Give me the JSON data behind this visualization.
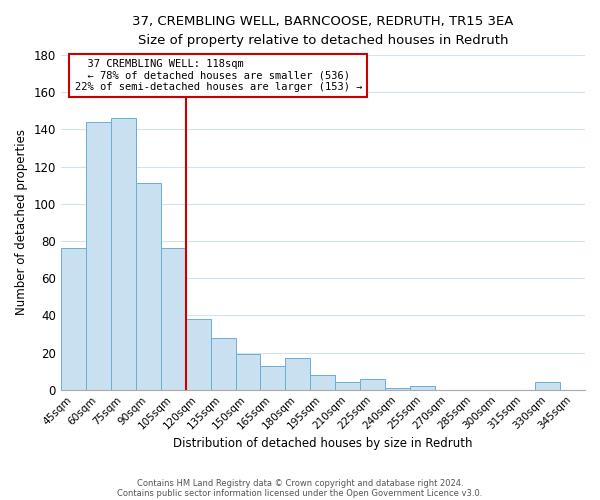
{
  "title_line1": "37, CREMBLING WELL, BARNCOOSE, REDRUTH, TR15 3EA",
  "title_line2": "Size of property relative to detached houses in Redruth",
  "xlabel": "Distribution of detached houses by size in Redruth",
  "ylabel": "Number of detached properties",
  "bar_labels": [
    "45sqm",
    "60sqm",
    "75sqm",
    "90sqm",
    "105sqm",
    "120sqm",
    "135sqm",
    "150sqm",
    "165sqm",
    "180sqm",
    "195sqm",
    "210sqm",
    "225sqm",
    "240sqm",
    "255sqm",
    "270sqm",
    "285sqm",
    "300sqm",
    "315sqm",
    "330sqm",
    "345sqm"
  ],
  "bar_values": [
    76,
    144,
    146,
    111,
    76,
    38,
    28,
    19,
    13,
    17,
    8,
    4,
    6,
    1,
    2,
    0,
    0,
    0,
    0,
    4,
    0
  ],
  "bar_color": "#c9e0f0",
  "bar_edge_color": "#6aaed6",
  "grid_color": "#d0e4f0",
  "vline_color": "#cc0000",
  "annotation_title": "37 CREMBLING WELL: 118sqm",
  "annotation_line1": "← 78% of detached houses are smaller (536)",
  "annotation_line2": "22% of semi-detached houses are larger (153) →",
  "annotation_box_color": "white",
  "annotation_box_edge": "#cc0000",
  "ylim": [
    0,
    180
  ],
  "yticks": [
    0,
    20,
    40,
    60,
    80,
    100,
    120,
    140,
    160,
    180
  ],
  "footer_line1": "Contains HM Land Registry data © Crown copyright and database right 2024.",
  "footer_line2": "Contains public sector information licensed under the Open Government Licence v3.0."
}
